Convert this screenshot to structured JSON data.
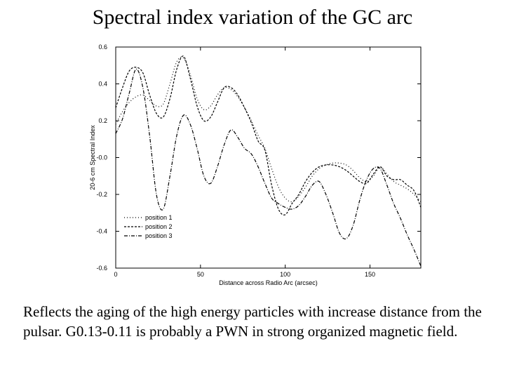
{
  "slide": {
    "title": "Spectral index variation of the GC arc",
    "caption": "Reflects the aging of the high energy particles with increase distance from the pulsar. G0.13-0.11 is probably a PWN in strong organized magnetic field."
  },
  "chart_data": {
    "type": "line",
    "title": "",
    "xlabel": "Distance across Radio Arc (arcsec)",
    "ylabel": "20-6 cm Spectral Index",
    "xlim": [
      0,
      180
    ],
    "ylim": [
      -0.6,
      0.6
    ],
    "xticks": [
      0,
      50,
      100,
      150
    ],
    "xtick_labels": [
      "0",
      "50",
      "100",
      "150"
    ],
    "yticks": [
      0.6,
      0.4,
      0.2,
      0.0,
      -0.2,
      -0.4,
      -0.6
    ],
    "ytick_labels": [
      "0.6",
      "0.4",
      "0.2",
      "-0.0",
      "-0.2",
      "-0.4",
      "-0.6"
    ],
    "legend_position": "bottom-left",
    "series": [
      {
        "name": "position 1",
        "dash": "1,3",
        "x": [
          0,
          4,
          8,
          12,
          16,
          20,
          24,
          28,
          32,
          36,
          40,
          44,
          48,
          52,
          56,
          60,
          64,
          68,
          72,
          76,
          80,
          84,
          88,
          92,
          96,
          100,
          104,
          108,
          112,
          116,
          120,
          124,
          128,
          132,
          136,
          140,
          144,
          148,
          152,
          156,
          160,
          164,
          168,
          172,
          176,
          180
        ],
        "y": [
          0.18,
          0.25,
          0.3,
          0.33,
          0.34,
          0.31,
          0.28,
          0.29,
          0.4,
          0.52,
          0.54,
          0.45,
          0.32,
          0.26,
          0.28,
          0.34,
          0.38,
          0.37,
          0.33,
          0.27,
          0.2,
          0.12,
          0.05,
          -0.06,
          -0.16,
          -0.22,
          -0.24,
          -0.21,
          -0.16,
          -0.1,
          -0.06,
          -0.04,
          -0.03,
          -0.03,
          -0.04,
          -0.07,
          -0.11,
          -0.13,
          -0.1,
          -0.05,
          -0.09,
          -0.13,
          -0.15,
          -0.17,
          -0.2,
          -0.24
        ]
      },
      {
        "name": "position 2",
        "dash": "3,2",
        "x": [
          0,
          4,
          8,
          12,
          16,
          20,
          24,
          28,
          32,
          36,
          40,
          44,
          48,
          52,
          56,
          60,
          64,
          68,
          72,
          76,
          80,
          84,
          88,
          92,
          96,
          100,
          104,
          108,
          112,
          116,
          120,
          124,
          128,
          132,
          136,
          140,
          144,
          148,
          152,
          156,
          160,
          164,
          168,
          172,
          176,
          180
        ],
        "y": [
          0.27,
          0.38,
          0.47,
          0.49,
          0.46,
          0.34,
          0.24,
          0.22,
          0.32,
          0.48,
          0.55,
          0.43,
          0.28,
          0.2,
          0.22,
          0.3,
          0.38,
          0.38,
          0.34,
          0.27,
          0.19,
          0.09,
          0.04,
          -0.15,
          -0.28,
          -0.31,
          -0.25,
          -0.2,
          -0.13,
          -0.08,
          -0.05,
          -0.04,
          -0.04,
          -0.05,
          -0.07,
          -0.1,
          -0.13,
          -0.14,
          -0.09,
          -0.05,
          -0.1,
          -0.12,
          -0.12,
          -0.15,
          -0.18,
          -0.27
        ]
      },
      {
        "name": "position 3",
        "dash": "5,2,1,2",
        "x": [
          0,
          4,
          8,
          12,
          16,
          20,
          24,
          28,
          32,
          36,
          40,
          44,
          48,
          52,
          56,
          60,
          64,
          68,
          72,
          76,
          80,
          84,
          88,
          92,
          96,
          100,
          104,
          108,
          112,
          116,
          120,
          124,
          128,
          132,
          136,
          140,
          144,
          148,
          152,
          156,
          160,
          164,
          168,
          172,
          176,
          180
        ],
        "y": [
          0.13,
          0.21,
          0.35,
          0.48,
          0.38,
          0.12,
          -0.2,
          -0.28,
          -0.1,
          0.12,
          0.23,
          0.18,
          0.05,
          -0.1,
          -0.14,
          -0.05,
          0.07,
          0.15,
          0.11,
          0.05,
          0.02,
          -0.05,
          -0.14,
          -0.22,
          -0.25,
          -0.27,
          -0.28,
          -0.26,
          -0.21,
          -0.15,
          -0.13,
          -0.2,
          -0.3,
          -0.41,
          -0.44,
          -0.37,
          -0.23,
          -0.12,
          -0.06,
          -0.06,
          -0.15,
          -0.25,
          -0.33,
          -0.42,
          -0.5,
          -0.59
        ]
      }
    ]
  }
}
